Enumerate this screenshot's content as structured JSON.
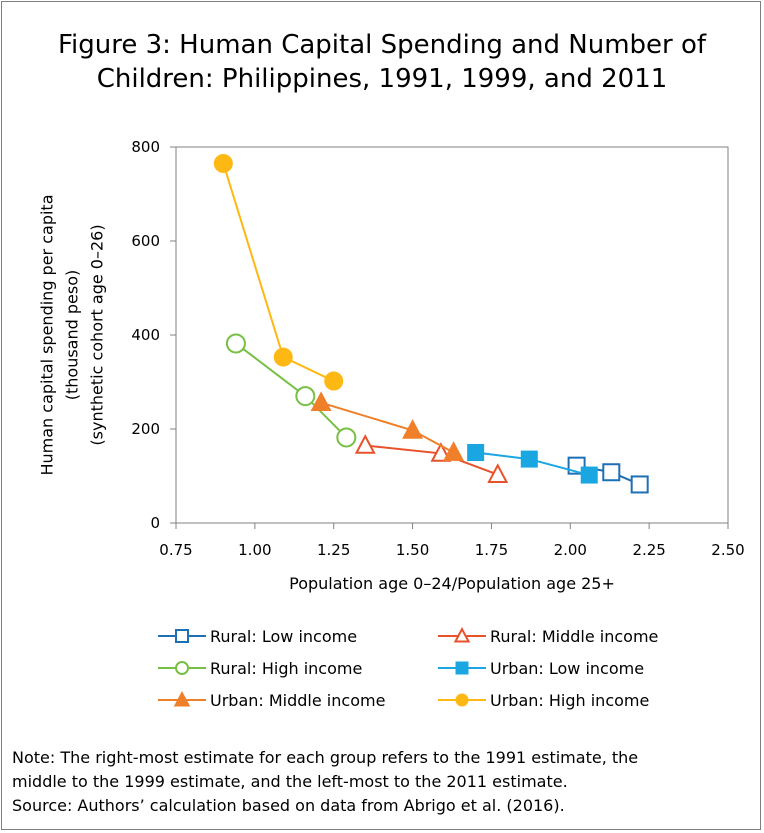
{
  "title_line1": "Figure 3: Human Capital Spending and Number of",
  "title_line2": "Children: Philippines, 1991, 1999, and 2011",
  "note_line1": "Note: The right-most estimate for each group refers to the 1991 estimate, the",
  "note_line2": "middle to the 1999 estimate, and the left-most to the 2011 estimate.",
  "source_line": "Source: Authors’ calculation based on data from Abrigo et al. (2016).",
  "chart_data": {
    "type": "line",
    "xlabel": "Population age 0–24/Population age 25+",
    "ylabel_lines": [
      "Human capital spending per capita",
      "(thousand peso)",
      "(synthetic cohort age 0–26)"
    ],
    "xlim": [
      0.75,
      2.5
    ],
    "ylim": [
      0,
      800
    ],
    "x_ticks": [
      "0.75",
      "1.00",
      "1.25",
      "1.50",
      "1.75",
      "2.00",
      "2.25",
      "2.50"
    ],
    "y_ticks": [
      "0",
      "200",
      "400",
      "600",
      "800"
    ],
    "grid": false,
    "legend_position": "bottom",
    "series": [
      {
        "name": "Rural: Low income",
        "color": "#1f6fb4",
        "marker": "square-open",
        "points": [
          [
            2.02,
            122
          ],
          [
            2.13,
            108
          ],
          [
            2.22,
            82
          ]
        ]
      },
      {
        "name": "Rural: Middle income",
        "color": "#e8522b",
        "marker": "triangle-open",
        "points": [
          [
            1.35,
            165
          ],
          [
            1.59,
            148
          ],
          [
            1.77,
            103
          ]
        ]
      },
      {
        "name": "Rural: High income",
        "color": "#77c043",
        "marker": "circle-open",
        "points": [
          [
            0.94,
            382
          ],
          [
            1.16,
            270
          ],
          [
            1.29,
            182
          ]
        ]
      },
      {
        "name": "Urban:  Low income",
        "color": "#1aa7e1",
        "marker": "square-filled",
        "points": [
          [
            1.7,
            150
          ],
          [
            1.87,
            136
          ],
          [
            2.06,
            102
          ]
        ]
      },
      {
        "name": "Urban:  Middle income",
        "color": "#f07f2a",
        "marker": "triangle-filled",
        "points": [
          [
            1.21,
            256
          ],
          [
            1.5,
            197
          ],
          [
            1.63,
            150
          ]
        ]
      },
      {
        "name": "Urban:  High income",
        "color": "#fdb813",
        "marker": "circle-filled",
        "points": [
          [
            0.9,
            765
          ],
          [
            1.09,
            353
          ],
          [
            1.25,
            302
          ]
        ]
      }
    ]
  }
}
